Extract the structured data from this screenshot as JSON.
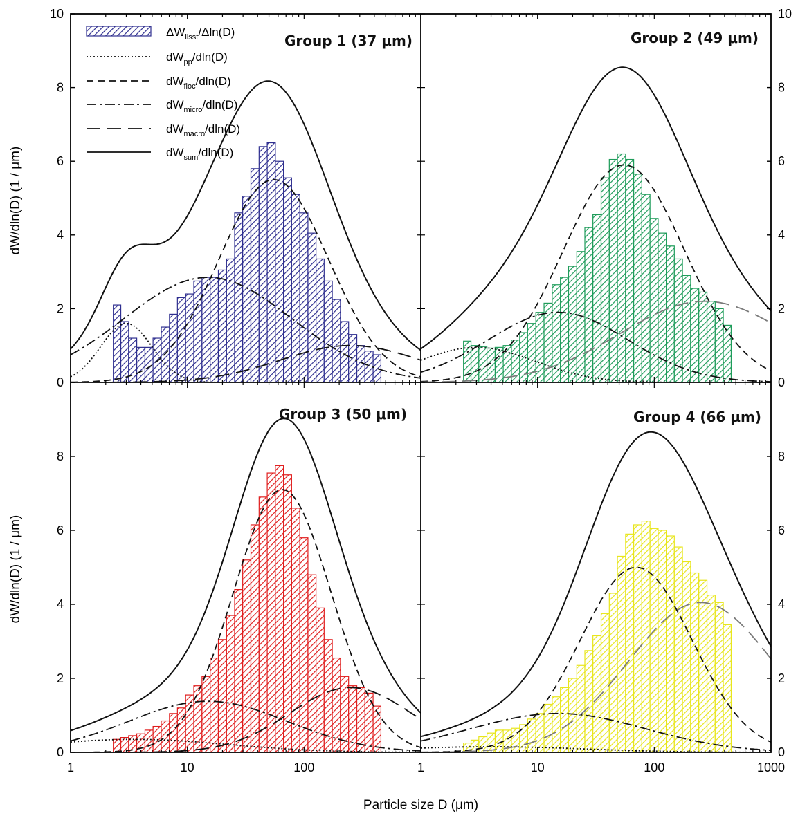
{
  "chart_data": {
    "type": "bar",
    "xlabel": "Particle size D (μm)",
    "ylabel": "dW/dln(D) (1 / μm)",
    "x_scale": "log",
    "xlim": [
      1,
      1000
    ],
    "ylim": [
      0,
      10
    ],
    "y_ticks": [
      "0",
      "2",
      "4",
      "6",
      "8",
      "10"
    ],
    "x_ticks": [
      "1",
      "10",
      "100",
      "1000"
    ],
    "legend": [
      {
        "key": "lisst",
        "main": "ΔW",
        "sub": "lisst",
        "tail": "/Δln(D)",
        "style": "hatched-bar"
      },
      {
        "key": "pp",
        "main": "dW",
        "sub": "pp",
        "tail": "/dln(D)",
        "style": "dotted"
      },
      {
        "key": "floc",
        "main": "dW",
        "sub": "floc",
        "tail": "/dln(D)",
        "style": "dashed"
      },
      {
        "key": "micro",
        "main": "dW",
        "sub": "micro",
        "tail": "/dln(D)",
        "style": "dash-dot"
      },
      {
        "key": "macro",
        "main": "dW",
        "sub": "macro",
        "tail": "/dln(D)",
        "style": "long-dash"
      },
      {
        "key": "sum",
        "main": "dW",
        "sub": "sum",
        "tail": "/dln(D)",
        "style": "solid"
      }
    ],
    "panels": [
      {
        "title": "Group 1 (37 μm)",
        "color": "#2e2e8f",
        "bars": {
          "x": [
            2.5,
            2.9,
            3.4,
            4.0,
            4.7,
            5.5,
            6.5,
            7.6,
            8.9,
            10.5,
            12.3,
            14.5,
            17.0,
            20.0,
            23.5,
            27.5,
            32.3,
            38.0,
            44.6,
            52.4,
            61.5,
            72.2,
            84.8,
            99.6,
            117,
            137,
            161,
            189,
            222,
            261,
            307,
            360,
            423
          ],
          "y": [
            2.1,
            1.65,
            1.2,
            0.95,
            0.95,
            1.2,
            1.5,
            1.85,
            2.3,
            2.4,
            2.75,
            2.85,
            2.85,
            3.05,
            3.35,
            4.6,
            5.05,
            5.8,
            6.4,
            6.5,
            6.0,
            5.55,
            5.1,
            4.6,
            4.05,
            3.35,
            2.75,
            2.25,
            1.65,
            1.3,
            1.0,
            0.85,
            0.75
          ]
        },
        "components": [
          {
            "key": "pp",
            "mu": 3.0,
            "s": 0.22,
            "a": 1.6
          },
          {
            "key": "micro",
            "mu": 15,
            "s": 0.72,
            "a": 2.85
          },
          {
            "key": "floc",
            "mu": 55,
            "s": 0.47,
            "a": 5.5
          },
          {
            "key": "macro",
            "mu": 250,
            "s": 0.6,
            "a": 1.0
          }
        ]
      },
      {
        "title": "Group 2 (49 μm)",
        "color": "#1e9c5a",
        "bars": {
          "x": [
            2.5,
            2.9,
            3.4,
            4.0,
            4.7,
            5.5,
            6.5,
            7.6,
            8.9,
            10.5,
            12.3,
            14.5,
            17.0,
            20.0,
            23.5,
            27.5,
            32.3,
            38.0,
            44.6,
            52.4,
            61.5,
            72.2,
            84.8,
            99.6,
            117,
            137,
            161,
            189,
            222,
            261,
            307,
            360,
            423
          ],
          "y": [
            1.12,
            1.0,
            0.97,
            0.93,
            0.95,
            1.0,
            1.15,
            1.35,
            1.6,
            1.9,
            2.15,
            2.65,
            2.85,
            3.15,
            3.55,
            4.2,
            4.55,
            5.55,
            6.05,
            6.2,
            6.05,
            5.65,
            5.1,
            4.45,
            4.05,
            3.7,
            3.35,
            2.9,
            2.55,
            2.45,
            2.2,
            2.0,
            1.55
          ]
        },
        "components": [
          {
            "key": "pp",
            "mu": 3.0,
            "s": 0.5,
            "a": 0.95
          },
          {
            "key": "micro",
            "mu": 15,
            "s": 0.6,
            "a": 1.9
          },
          {
            "key": "floc",
            "mu": 55,
            "s": 0.52,
            "a": 5.9
          },
          {
            "key": "macro",
            "mu": 270,
            "s": 0.72,
            "a": 2.2
          }
        ]
      },
      {
        "title": "Group 3 (50 μm)",
        "color": "#e01e1e",
        "bars": {
          "x": [
            2.5,
            2.9,
            3.4,
            4.0,
            4.7,
            5.5,
            6.5,
            7.6,
            8.9,
            10.5,
            12.3,
            14.5,
            17.0,
            20.0,
            23.5,
            27.5,
            32.3,
            38.0,
            44.6,
            52.4,
            61.5,
            72.2,
            84.8,
            99.6,
            117,
            137,
            161,
            189,
            222,
            261,
            307,
            360,
            423
          ],
          "y": [
            0.35,
            0.4,
            0.45,
            0.5,
            0.6,
            0.7,
            0.85,
            1.05,
            1.2,
            1.55,
            1.8,
            2.05,
            2.55,
            3.05,
            3.7,
            4.4,
            5.2,
            6.15,
            6.9,
            7.55,
            7.75,
            7.5,
            6.6,
            5.8,
            4.8,
            3.9,
            3.05,
            2.55,
            2.05,
            1.8,
            1.75,
            1.6,
            1.25
          ]
        },
        "components": [
          {
            "key": "pp",
            "mu": 3.5,
            "s": 0.8,
            "a": 0.35
          },
          {
            "key": "micro",
            "mu": 15,
            "s": 0.68,
            "a": 1.38
          },
          {
            "key": "floc",
            "mu": 65,
            "s": 0.42,
            "a": 7.1
          },
          {
            "key": "macro",
            "mu": 250,
            "s": 0.52,
            "a": 1.75
          }
        ]
      },
      {
        "title": "Group 4 (66 μm)",
        "color": "#e8e61c",
        "bars": {
          "x": [
            2.5,
            2.9,
            3.4,
            4.0,
            4.7,
            5.5,
            6.5,
            7.6,
            8.9,
            10.5,
            12.3,
            14.5,
            17.0,
            20.0,
            23.5,
            27.5,
            32.3,
            38.0,
            44.6,
            52.4,
            61.5,
            72.2,
            84.8,
            99.6,
            117,
            137,
            161,
            189,
            222,
            261,
            307,
            360,
            423
          ],
          "y": [
            0.25,
            0.33,
            0.42,
            0.52,
            0.6,
            0.6,
            0.65,
            0.75,
            0.9,
            1.05,
            1.3,
            1.5,
            1.75,
            2.0,
            2.35,
            2.75,
            3.15,
            3.75,
            4.3,
            5.3,
            5.9,
            6.15,
            6.25,
            6.05,
            6.0,
            5.85,
            5.55,
            5.15,
            4.85,
            4.65,
            4.25,
            4.05,
            3.45
          ]
        },
        "components": [
          {
            "key": "pp",
            "mu": 4.0,
            "s": 0.8,
            "a": 0.15
          },
          {
            "key": "micro",
            "mu": 15,
            "s": 0.75,
            "a": 1.05
          },
          {
            "key": "floc",
            "mu": 70,
            "s": 0.48,
            "a": 5.0
          },
          {
            "key": "macro",
            "mu": 250,
            "s": 0.62,
            "a": 4.05
          }
        ]
      }
    ]
  }
}
